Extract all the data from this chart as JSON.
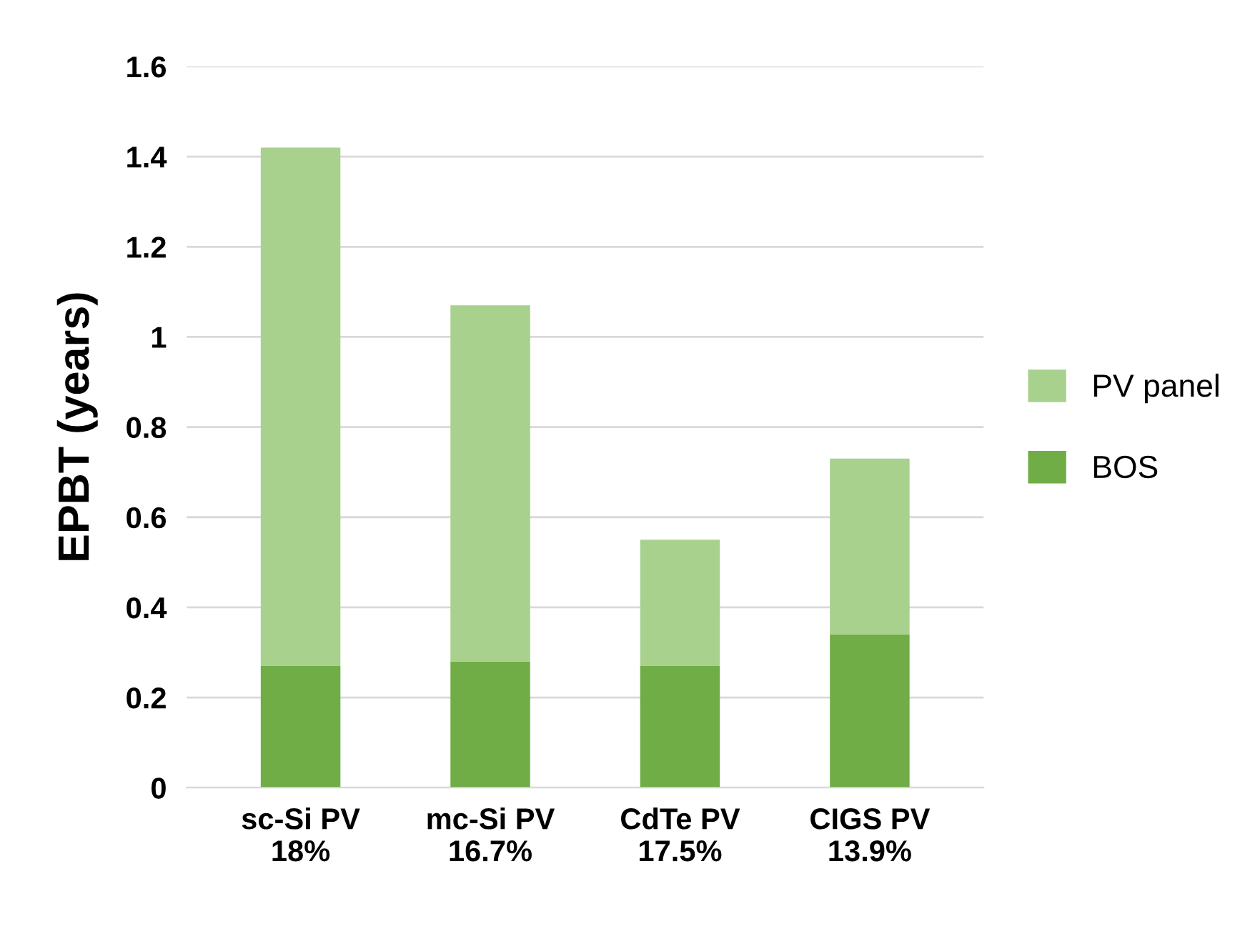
{
  "chart_data": {
    "type": "bar",
    "stacked": true,
    "ylabel": "EPBT (years)",
    "categories": [
      "sc-Si PV\n18%",
      "mc-Si PV\n16.7%",
      "CdTe PV\n17.5%",
      "CIGS PV\n13.9%"
    ],
    "series": [
      {
        "name": "BOS",
        "color": "#70ad47",
        "values": [
          0.27,
          0.28,
          0.27,
          0.34
        ]
      },
      {
        "name": "PV panel",
        "color": "#a9d18e",
        "values": [
          1.15,
          0.79,
          0.28,
          0.39
        ]
      }
    ],
    "ylim": [
      0,
      1.6
    ],
    "yticks": [
      0,
      0.2,
      0.4,
      0.6,
      0.8,
      1,
      1.2,
      1.4,
      1.6
    ],
    "grid": "y",
    "legend": "right"
  }
}
